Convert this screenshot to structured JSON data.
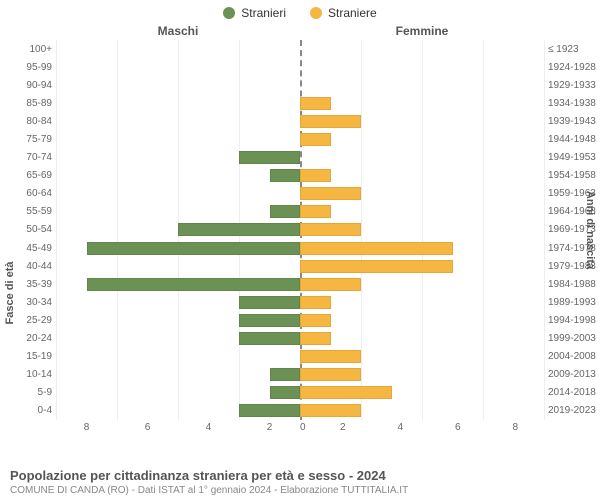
{
  "legend": {
    "male_label": "Stranieri",
    "female_label": "Straniere"
  },
  "columns": {
    "left": "Maschi",
    "right": "Femmine"
  },
  "y_axis_left": {
    "title": "Fasce di età"
  },
  "y_axis_right": {
    "title": "Anni di nascita"
  },
  "x_axis": {
    "max": 8,
    "ticks": [
      0,
      2,
      4,
      6,
      8
    ]
  },
  "colors": {
    "male": "#6c9154",
    "female": "#f5b742",
    "grid": "#eeeeee",
    "centerline": "#888888",
    "background": "#ffffff",
    "text": "#333333",
    "muted_text": "#666666"
  },
  "style": {
    "bar_height_pct": 72,
    "font_family": "Arial, Helvetica, sans-serif",
    "label_fontsize": 10,
    "legend_fontsize": 12,
    "title_fontsize": 13,
    "sub_fontsize": 10
  },
  "age_bands": [
    {
      "age": "100+",
      "birth": "≤ 1923",
      "male": 0,
      "female": 0
    },
    {
      "age": "95-99",
      "birth": "1924-1928",
      "male": 0,
      "female": 0
    },
    {
      "age": "90-94",
      "birth": "1929-1933",
      "male": 0,
      "female": 0
    },
    {
      "age": "85-89",
      "birth": "1934-1938",
      "male": 0,
      "female": 1
    },
    {
      "age": "80-84",
      "birth": "1939-1943",
      "male": 0,
      "female": 2
    },
    {
      "age": "75-79",
      "birth": "1944-1948",
      "male": 0,
      "female": 1
    },
    {
      "age": "70-74",
      "birth": "1949-1953",
      "male": 2,
      "female": 0
    },
    {
      "age": "65-69",
      "birth": "1954-1958",
      "male": 1,
      "female": 1
    },
    {
      "age": "60-64",
      "birth": "1959-1963",
      "male": 0,
      "female": 2
    },
    {
      "age": "55-59",
      "birth": "1964-1968",
      "male": 1,
      "female": 1
    },
    {
      "age": "50-54",
      "birth": "1969-1973",
      "male": 4,
      "female": 2
    },
    {
      "age": "45-49",
      "birth": "1974-1978",
      "male": 7,
      "female": 5
    },
    {
      "age": "40-44",
      "birth": "1979-1983",
      "male": 0,
      "female": 5
    },
    {
      "age": "35-39",
      "birth": "1984-1988",
      "male": 7,
      "female": 2
    },
    {
      "age": "30-34",
      "birth": "1989-1993",
      "male": 2,
      "female": 1
    },
    {
      "age": "25-29",
      "birth": "1994-1998",
      "male": 2,
      "female": 1
    },
    {
      "age": "20-24",
      "birth": "1999-2003",
      "male": 2,
      "female": 1
    },
    {
      "age": "15-19",
      "birth": "2004-2008",
      "male": 0,
      "female": 2
    },
    {
      "age": "10-14",
      "birth": "2009-2013",
      "male": 1,
      "female": 2
    },
    {
      "age": "5-9",
      "birth": "2014-2018",
      "male": 1,
      "female": 3
    },
    {
      "age": "0-4",
      "birth": "2019-2023",
      "male": 2,
      "female": 2
    }
  ],
  "footer": {
    "title": "Popolazione per cittadinanza straniera per età e sesso - 2024",
    "subtitle": "COMUNE DI CANDA (RO) - Dati ISTAT al 1° gennaio 2024 - Elaborazione TUTTITALIA.IT"
  }
}
